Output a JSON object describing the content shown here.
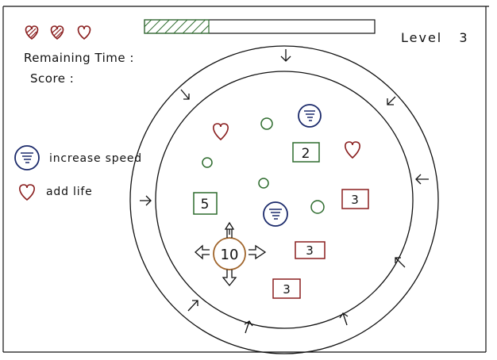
{
  "hud": {
    "lives": [
      {
        "icon": "heart-icon",
        "state": "filled"
      },
      {
        "icon": "heart-icon",
        "state": "filled"
      },
      {
        "icon": "heart-icon",
        "state": "empty"
      }
    ],
    "remaining_time_label": "Remaining Time :",
    "score_label": "Score :",
    "level_label": "Level",
    "level_value": "3",
    "time_progress": 0.28
  },
  "legend": [
    {
      "icon": "tornado-icon",
      "label": "increase speed"
    },
    {
      "icon": "heart-icon",
      "label": "add life"
    }
  ],
  "board": {
    "player_value": "10",
    "tiles": [
      {
        "value": "2",
        "color": "#2d6b2d"
      },
      {
        "value": "5",
        "color": "#2d6b2d"
      },
      {
        "value": "3",
        "color": "#8a1f1f"
      },
      {
        "value": "3",
        "color": "#8a1f1f"
      },
      {
        "value": "3",
        "color": "#8a1f1f"
      }
    ]
  },
  "colors": {
    "green": "#2d6b2d",
    "red": "#8a1f1f",
    "navy": "#1b2a6b",
    "player_ring": "#a0642a",
    "ink": "#111111"
  }
}
